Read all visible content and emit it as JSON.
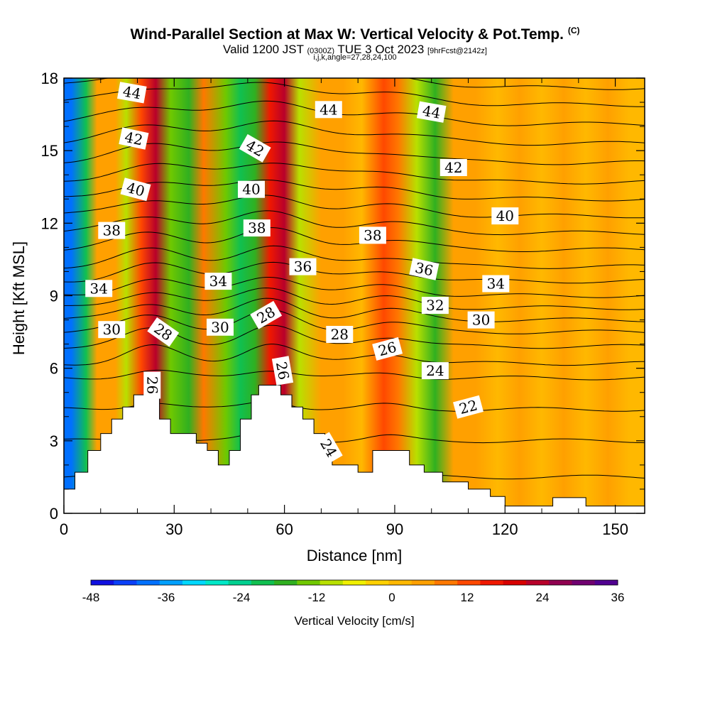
{
  "header": {
    "title": "Wind-Parallel Section at Max W: Vertical Velocity & Pot.Temp.",
    "copyright": "(C)",
    "valid_prefix": "Valid 1200 JST",
    "valid_utc": "(0300Z)",
    "valid_date": "TUE 3 Oct 2023",
    "forecast": "[9hrFcst@2142z]",
    "params": "i,j,k,angle=27,28,24,100"
  },
  "chart_data": {
    "type": "heatmap",
    "title": "Wind-Parallel Section at Max W: Vertical Velocity & Pot.Temp.",
    "xlabel": "Distance [nm]",
    "ylabel": "Height [Kft MSL]",
    "xlim": [
      0,
      158
    ],
    "ylim": [
      0,
      18
    ],
    "xticks": [
      0,
      30,
      60,
      90,
      120,
      150
    ],
    "yticks": [
      0,
      3,
      6,
      9,
      12,
      15,
      18
    ],
    "grid": false,
    "colorbar": {
      "label": "Vertical Velocity [cm/s]",
      "ticks": [
        -48,
        -36,
        -24,
        -12,
        0,
        12,
        24,
        36
      ],
      "min": -48,
      "max": 36,
      "colors": [
        "#1010e0",
        "#0a40f8",
        "#0070ff",
        "#00a0ff",
        "#00d8ff",
        "#00e8c8",
        "#00d090",
        "#10c050",
        "#30b020",
        "#70c800",
        "#b8e000",
        "#f0f000",
        "#ffd000",
        "#ffb800",
        "#ffa000",
        "#ff7800",
        "#ff4800",
        "#f01800",
        "#d80000",
        "#b8002a",
        "#900050",
        "#700070",
        "#500090"
      ]
    },
    "velocity_columns": [
      {
        "x": 2,
        "w": -38
      },
      {
        "x": 6,
        "w": -22
      },
      {
        "x": 9,
        "w": 6
      },
      {
        "x": 14,
        "w": 4
      },
      {
        "x": 17,
        "w": -10
      },
      {
        "x": 21,
        "w": 14
      },
      {
        "x": 25,
        "w": 24
      },
      {
        "x": 29,
        "w": -12
      },
      {
        "x": 34,
        "w": -16
      },
      {
        "x": 38,
        "w": 8
      },
      {
        "x": 44,
        "w": -14
      },
      {
        "x": 48,
        "w": -22
      },
      {
        "x": 52,
        "w": -18
      },
      {
        "x": 56,
        "w": 16
      },
      {
        "x": 60,
        "w": 22
      },
      {
        "x": 64,
        "w": -10
      },
      {
        "x": 70,
        "w": 4
      },
      {
        "x": 76,
        "w": 6
      },
      {
        "x": 81,
        "w": 2
      },
      {
        "x": 87,
        "w": 14
      },
      {
        "x": 91,
        "w": 8
      },
      {
        "x": 96,
        "w": -8
      },
      {
        "x": 101,
        "w": -18
      },
      {
        "x": 106,
        "w": 4
      },
      {
        "x": 112,
        "w": 6
      },
      {
        "x": 118,
        "w": 2
      },
      {
        "x": 124,
        "w": 5
      },
      {
        "x": 130,
        "w": 1
      },
      {
        "x": 136,
        "w": 4
      },
      {
        "x": 142,
        "w": 0
      },
      {
        "x": 148,
        "w": 6
      },
      {
        "x": 154,
        "w": 3
      }
    ],
    "theta_isentropes": [
      {
        "y0": 1.5,
        "shape": "terrain"
      },
      {
        "y0": 3.0,
        "shape": "terrain"
      },
      {
        "y0": 4.3,
        "shape": "dome"
      },
      {
        "y0": 5.6
      },
      {
        "y0": 6.2
      },
      {
        "y0": 6.9
      },
      {
        "y0": 7.5
      },
      {
        "y0": 8.0
      },
      {
        "y0": 8.5
      },
      {
        "y0": 9.0
      },
      {
        "y0": 9.6
      },
      {
        "y0": 10.2
      },
      {
        "y0": 10.9
      },
      {
        "y0": 11.6
      },
      {
        "y0": 12.3
      },
      {
        "y0": 13.0
      },
      {
        "y0": 13.7
      },
      {
        "y0": 14.5
      },
      {
        "y0": 15.3
      },
      {
        "y0": 16.1
      },
      {
        "y0": 16.9
      },
      {
        "y0": 17.6
      }
    ],
    "contour_labels": [
      {
        "text": "44",
        "x": 18.5,
        "y": 17.4,
        "rot": 10
      },
      {
        "text": "42",
        "x": 19.0,
        "y": 15.5,
        "rot": 12
      },
      {
        "text": "40",
        "x": 19.5,
        "y": 13.4,
        "rot": 15
      },
      {
        "text": "38",
        "x": 13.0,
        "y": 11.7,
        "rot": 0
      },
      {
        "text": "34",
        "x": 9.5,
        "y": 9.3,
        "rot": 0
      },
      {
        "text": "30",
        "x": 13.0,
        "y": 7.6,
        "rot": 0
      },
      {
        "text": "28",
        "x": 27.0,
        "y": 7.5,
        "rot": 35
      },
      {
        "text": "26",
        "x": 24.0,
        "y": 5.3,
        "rot": 90
      },
      {
        "text": "34",
        "x": 42.0,
        "y": 9.6,
        "rot": 0
      },
      {
        "text": "30",
        "x": 42.5,
        "y": 7.7,
        "rot": 0
      },
      {
        "text": "42",
        "x": 52.0,
        "y": 15.1,
        "rot": 30
      },
      {
        "text": "40",
        "x": 51.0,
        "y": 13.4,
        "rot": 0
      },
      {
        "text": "38",
        "x": 52.5,
        "y": 11.8,
        "rot": 0
      },
      {
        "text": "28",
        "x": 55.0,
        "y": 8.2,
        "rot": -30
      },
      {
        "text": "26",
        "x": 59.5,
        "y": 5.9,
        "rot": 80
      },
      {
        "text": "44",
        "x": 72.0,
        "y": 16.7,
        "rot": 0
      },
      {
        "text": "36",
        "x": 65.0,
        "y": 10.2,
        "rot": 0
      },
      {
        "text": "28",
        "x": 75.0,
        "y": 7.4,
        "rot": 0
      },
      {
        "text": "24",
        "x": 72.0,
        "y": 2.7,
        "rot": 60
      },
      {
        "text": "38",
        "x": 84.0,
        "y": 11.5,
        "rot": 0
      },
      {
        "text": "26",
        "x": 88.0,
        "y": 6.8,
        "rot": -15
      },
      {
        "text": "44",
        "x": 100.0,
        "y": 16.6,
        "rot": 10
      },
      {
        "text": "42",
        "x": 106.0,
        "y": 14.3,
        "rot": 0
      },
      {
        "text": "36",
        "x": 98.0,
        "y": 10.1,
        "rot": 12
      },
      {
        "text": "32",
        "x": 101.0,
        "y": 8.6,
        "rot": 0
      },
      {
        "text": "24",
        "x": 101.0,
        "y": 5.9,
        "rot": 0
      },
      {
        "text": "22",
        "x": 110.0,
        "y": 4.4,
        "rot": -15
      },
      {
        "text": "40",
        "x": 120.0,
        "y": 12.3,
        "rot": 0
      },
      {
        "text": "34",
        "x": 117.5,
        "y": 9.5,
        "rot": 0
      },
      {
        "text": "30",
        "x": 113.5,
        "y": 8.0,
        "rot": 0
      }
    ],
    "terrain": [
      [
        0,
        1.0
      ],
      [
        3,
        1.0
      ],
      [
        3,
        1.7
      ],
      [
        6.5,
        1.7
      ],
      [
        6.5,
        2.6
      ],
      [
        10,
        2.6
      ],
      [
        10,
        3.3
      ],
      [
        13,
        3.3
      ],
      [
        13,
        3.9
      ],
      [
        16,
        3.9
      ],
      [
        16,
        4.4
      ],
      [
        19,
        4.4
      ],
      [
        19,
        4.9
      ],
      [
        26,
        4.9
      ],
      [
        26,
        3.9
      ],
      [
        29,
        3.9
      ],
      [
        29,
        3.3
      ],
      [
        36,
        3.3
      ],
      [
        36,
        2.9
      ],
      [
        39,
        2.9
      ],
      [
        39,
        2.6
      ],
      [
        42,
        2.6
      ],
      [
        42,
        2.0
      ],
      [
        45,
        2.0
      ],
      [
        45,
        2.6
      ],
      [
        48,
        2.6
      ],
      [
        48,
        3.9
      ],
      [
        51,
        3.9
      ],
      [
        51,
        4.9
      ],
      [
        53,
        4.9
      ],
      [
        53,
        5.3
      ],
      [
        59,
        5.3
      ],
      [
        59,
        4.9
      ],
      [
        62,
        4.9
      ],
      [
        62,
        4.4
      ],
      [
        65,
        4.4
      ],
      [
        65,
        3.9
      ],
      [
        68,
        3.9
      ],
      [
        68,
        3.3
      ],
      [
        71,
        3.3
      ],
      [
        71,
        2.6
      ],
      [
        73,
        2.6
      ],
      [
        73,
        2.0
      ],
      [
        80,
        2.0
      ],
      [
        80,
        1.7
      ],
      [
        84,
        1.7
      ],
      [
        84,
        2.6
      ],
      [
        94,
        2.6
      ],
      [
        94,
        2.0
      ],
      [
        98,
        2.0
      ],
      [
        98,
        1.7
      ],
      [
        103,
        1.7
      ],
      [
        103,
        1.3
      ],
      [
        110,
        1.3
      ],
      [
        110,
        1.0
      ],
      [
        116,
        1.0
      ],
      [
        116,
        0.7
      ],
      [
        120,
        0.7
      ],
      [
        120,
        0.3
      ],
      [
        133,
        0.3
      ],
      [
        133,
        0.65
      ],
      [
        142,
        0.65
      ],
      [
        142,
        0.3
      ],
      [
        158,
        0.3
      ]
    ]
  }
}
